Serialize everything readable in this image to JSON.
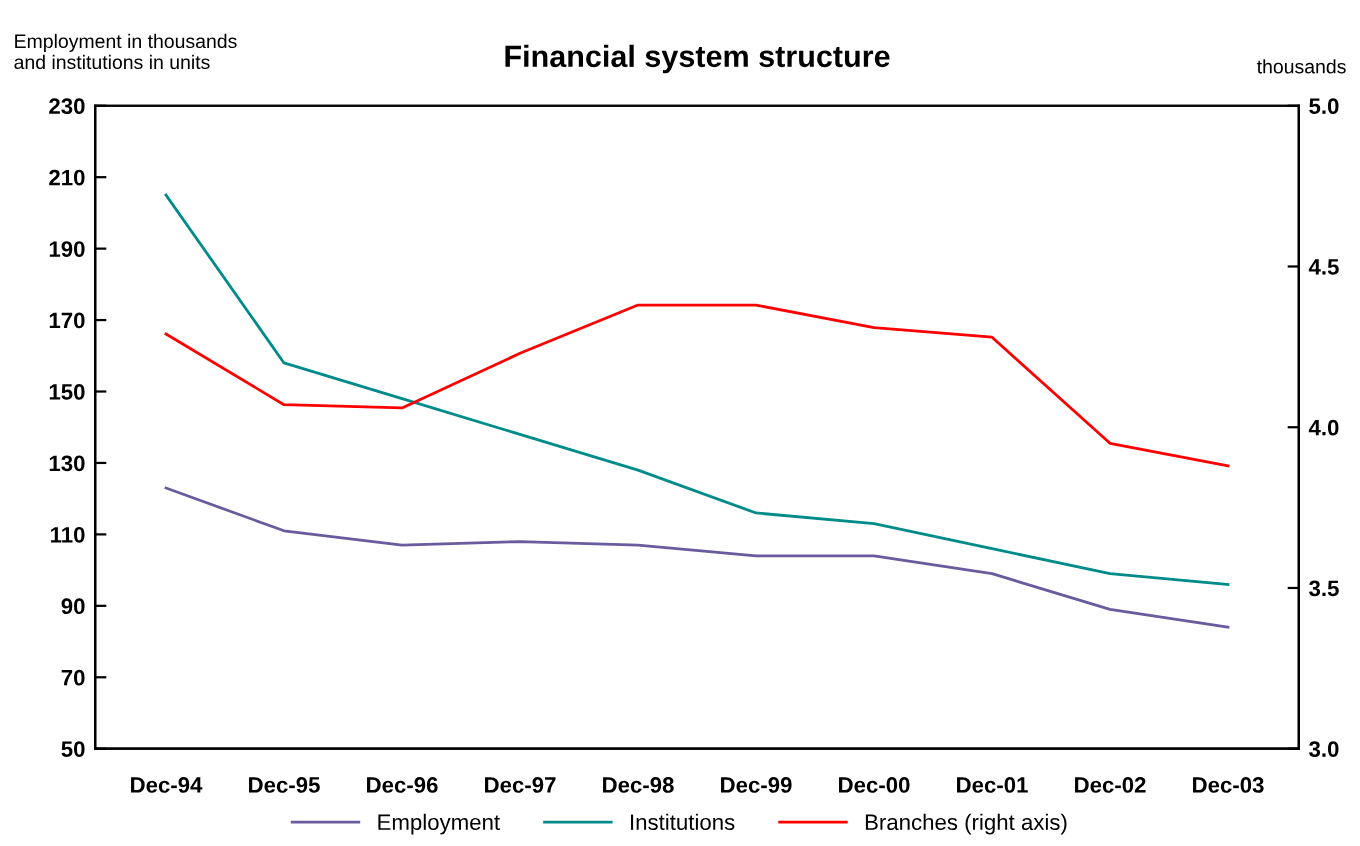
{
  "chart_data": {
    "type": "line",
    "title": "Financial system structure",
    "ylabel": "Employment in thousands\nand institutions in units",
    "y2label": "thousands",
    "categories": [
      "Dec-94",
      "Dec-95",
      "Dec-96",
      "Dec-97",
      "Dec-98",
      "Dec-99",
      "Dec-00",
      "Dec-01",
      "Dec-02",
      "Dec-03"
    ],
    "series": [
      {
        "name": "Employment",
        "color": "#6a5a9e",
        "values": [
          123,
          111,
          107,
          108,
          107,
          104,
          104,
          99,
          89,
          84
        ]
      },
      {
        "name": "Institutions",
        "color": "#008b8b",
        "values": [
          205,
          158,
          148,
          138,
          128,
          116,
          113,
          106,
          99,
          96
        ]
      },
      {
        "name": "Branches (right axis)",
        "color": "#ff0000",
        "axis": "y2",
        "values": [
          4.29,
          4.07,
          4.06,
          4.23,
          4.38,
          4.38,
          4.31,
          4.28,
          3.95,
          3.88
        ]
      }
    ],
    "ylim": [
      50,
      230
    ],
    "yticks": [
      50,
      70,
      90,
      110,
      130,
      150,
      170,
      190,
      210,
      230
    ],
    "y2lim": [
      3.0,
      5.0
    ],
    "y2ticks": [
      {
        "value": 3.0,
        "label": "3.0"
      },
      {
        "value": 3.5,
        "label": "3.5"
      },
      {
        "value": 4.0,
        "label": "4.0"
      },
      {
        "value": 4.5,
        "label": "4.5"
      },
      {
        "value": 5.0,
        "label": "5.0"
      }
    ],
    "grid": false,
    "legend": "bottom",
    "marker": "none",
    "line_style": "solid"
  }
}
